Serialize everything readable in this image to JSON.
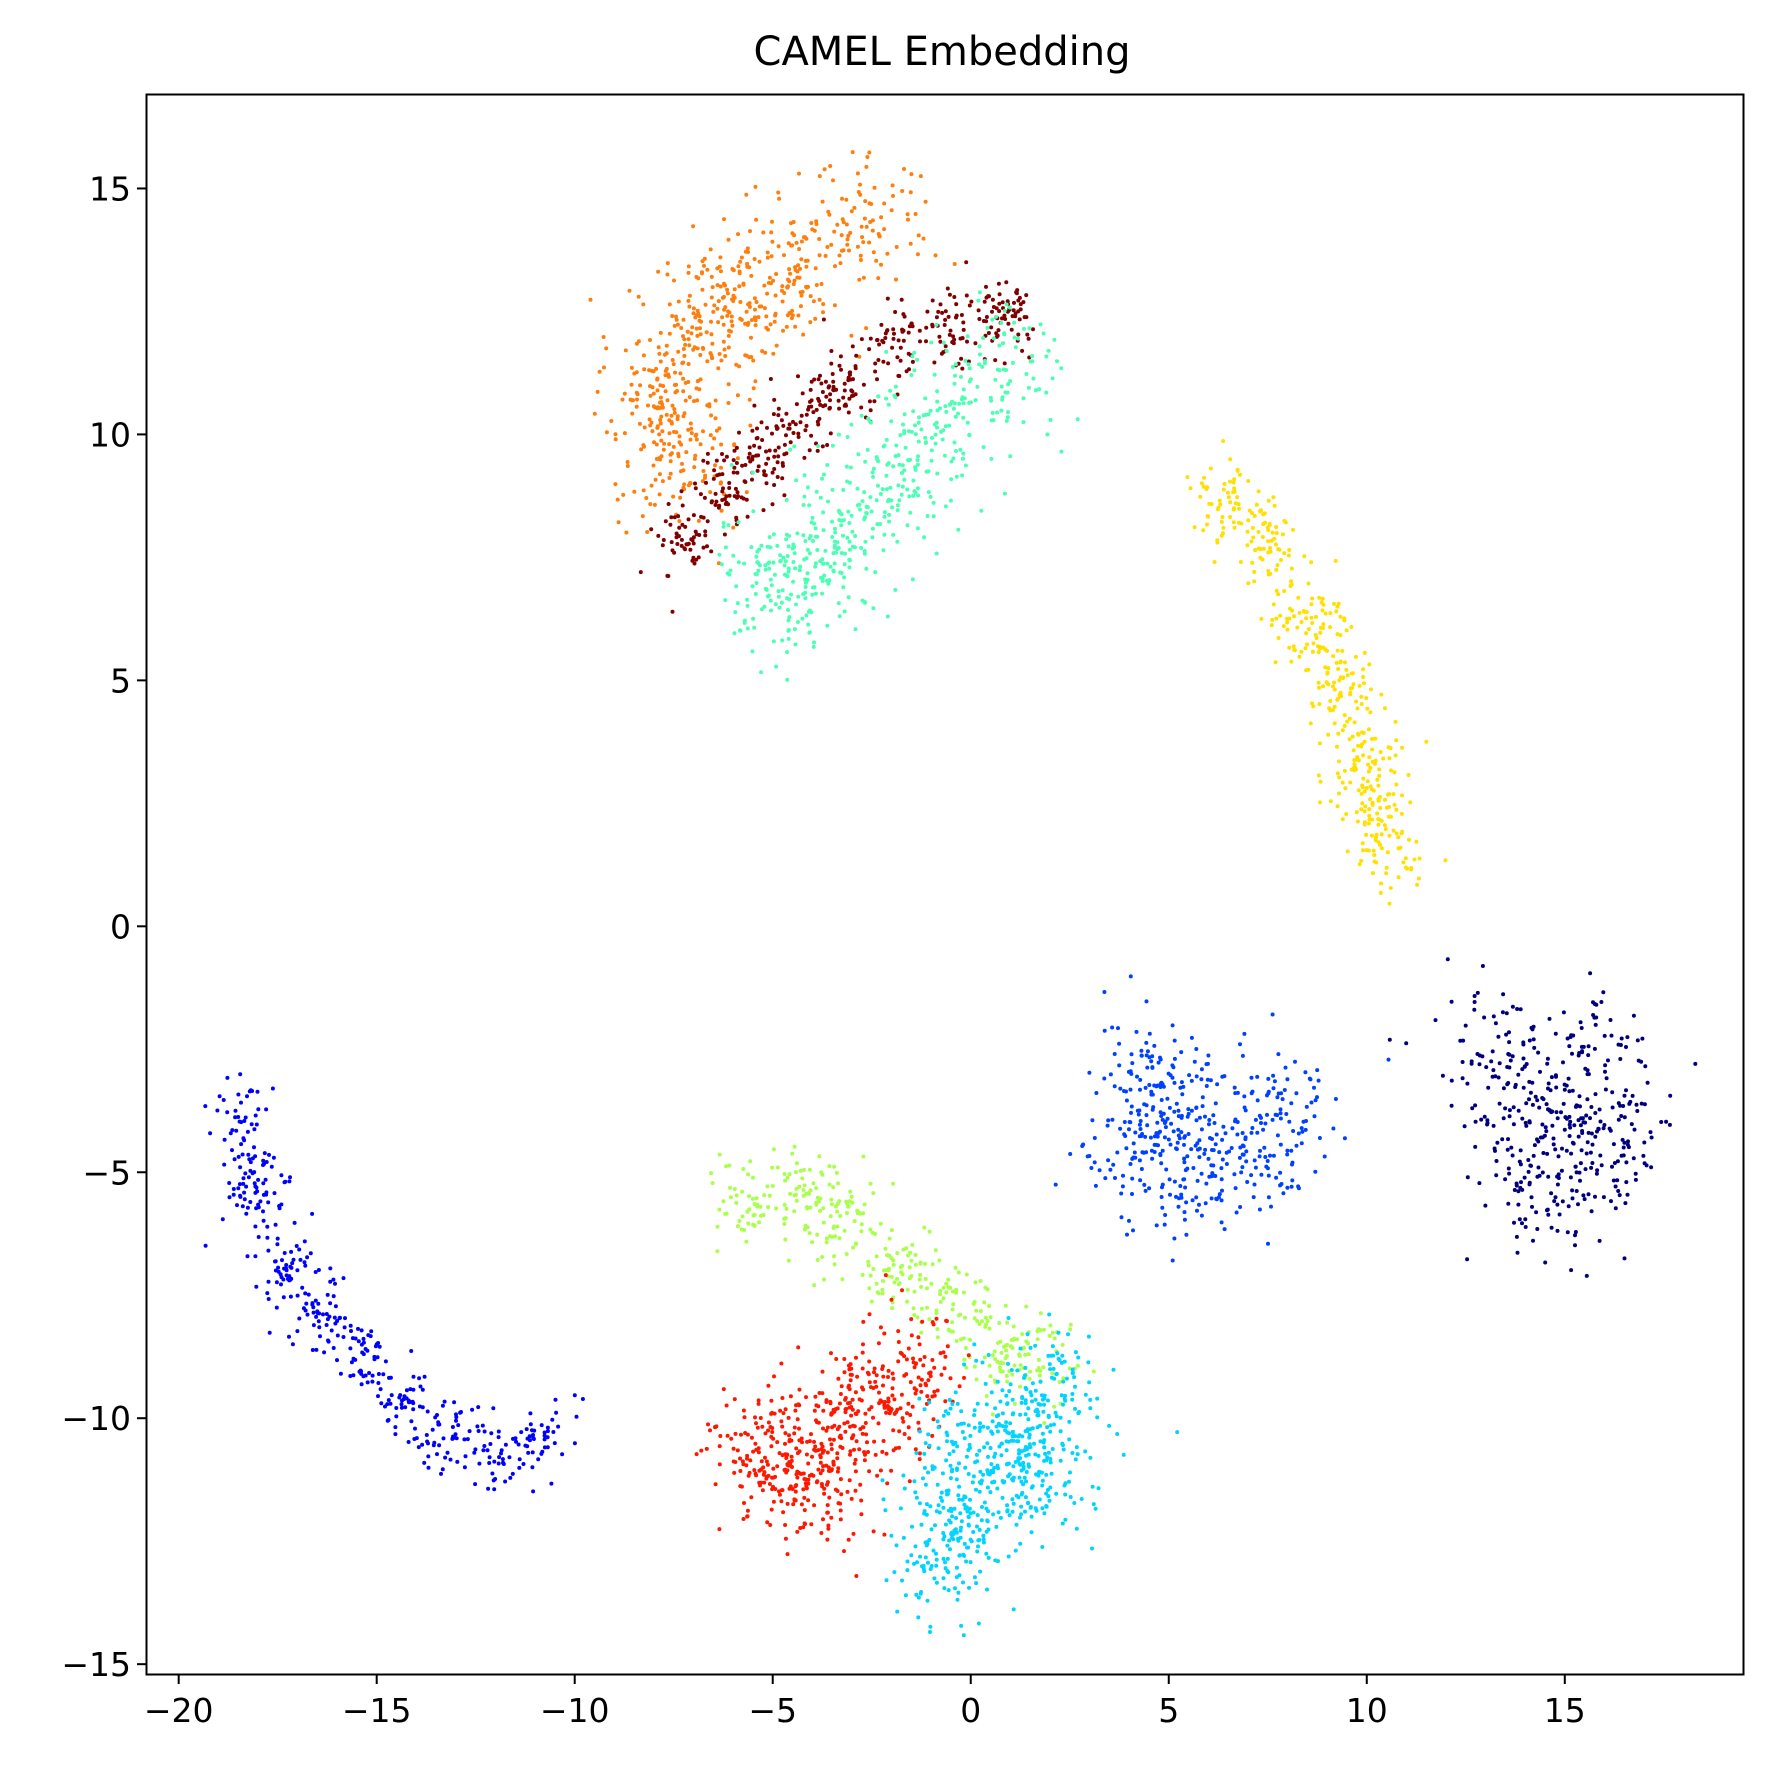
{
  "chart_data": {
    "type": "scatter",
    "title": "CAMEL Embedding",
    "xlabel": "",
    "ylabel": "",
    "xlim": [
      -20.8,
      19.5
    ],
    "ylim": [
      -15.2,
      16.9
    ],
    "xticks": [
      -20,
      -15,
      -10,
      -5,
      0,
      5,
      10,
      15
    ],
    "xtick_labels": [
      "−20",
      "−15",
      "−10",
      "−5",
      "0",
      "5",
      "10",
      "15"
    ],
    "yticks": [
      -15,
      -10,
      -5,
      0,
      5,
      10,
      15
    ],
    "ytick_labels": [
      "−15",
      "−10",
      "−5",
      "0",
      "5",
      "10",
      "15"
    ],
    "grid": false,
    "legend": "none",
    "colormap": "jet",
    "clusters": [
      {
        "color": "#ff7f0e",
        "n": 600,
        "points": [
          [
            -8.0,
            10.5
          ],
          [
            -6.3,
            12.6
          ],
          [
            -4.5,
            13.5
          ],
          [
            -2.5,
            14.3
          ],
          [
            -7.1,
            11.8
          ],
          [
            -5.2,
            13.0
          ],
          [
            -7.4,
            9.6
          ]
        ],
        "spread": 0.75
      },
      {
        "color": "#800000",
        "n": 450,
        "points": [
          [
            -7.2,
            7.9
          ],
          [
            -6.3,
            8.8
          ],
          [
            -5.3,
            9.5
          ],
          [
            -4.2,
            10.3
          ],
          [
            -3.2,
            11.0
          ],
          [
            -2.0,
            11.8
          ],
          [
            -0.6,
            12.2
          ],
          [
            0.8,
            12.4
          ]
        ],
        "spread": 0.4
      },
      {
        "color": "#4dffb4",
        "n": 550,
        "points": [
          [
            -4.3,
            7.0
          ],
          [
            -3.5,
            7.8
          ],
          [
            -2.2,
            8.8
          ],
          [
            -1.2,
            9.8
          ],
          [
            -0.3,
            10.6
          ],
          [
            0.9,
            11.3
          ],
          [
            -5.2,
            7.0
          ]
        ],
        "spread": 0.75
      },
      {
        "color": "#ffe000",
        "n": 450,
        "points": [
          [
            6.5,
            8.6
          ],
          [
            7.5,
            7.6
          ],
          [
            8.5,
            6.2
          ],
          [
            9.3,
            4.9
          ],
          [
            9.9,
            3.6
          ],
          [
            10.2,
            2.4
          ],
          [
            10.5,
            1.6
          ]
        ],
        "spread": 0.45
      },
      {
        "color": "#0040ff",
        "n": 450,
        "points": [
          [
            4.0,
            -4.6
          ],
          [
            5.0,
            -3.8
          ],
          [
            6.2,
            -4.1
          ],
          [
            7.2,
            -4.5
          ],
          [
            7.9,
            -3.6
          ],
          [
            4.4,
            -2.8
          ],
          [
            5.6,
            -5.0
          ]
        ],
        "spread": 0.7
      },
      {
        "color": "#00007f",
        "n": 420,
        "points": [
          [
            13.0,
            -2.6
          ],
          [
            14.0,
            -3.6
          ],
          [
            15.0,
            -4.4
          ],
          [
            16.3,
            -4.5
          ],
          [
            14.3,
            -5.3
          ],
          [
            15.5,
            -2.8
          ]
        ],
        "spread": 0.8
      },
      {
        "color": "#0000ff",
        "n": 450,
        "points": [
          [
            -18.4,
            -4.0
          ],
          [
            -18.0,
            -5.4
          ],
          [
            -17.4,
            -6.8
          ],
          [
            -16.5,
            -7.8
          ],
          [
            -15.4,
            -8.7
          ],
          [
            -14.3,
            -9.7
          ],
          [
            -13.2,
            -10.3
          ],
          [
            -12.0,
            -10.6
          ],
          [
            -10.8,
            -10.4
          ]
        ],
        "spread": 0.4
      },
      {
        "color": "#aaff4d",
        "n": 400,
        "points": [
          [
            -5.6,
            -5.6
          ],
          [
            -4.2,
            -5.4
          ],
          [
            -3.2,
            -6.1
          ],
          [
            -1.8,
            -6.9
          ],
          [
            -0.6,
            -7.8
          ],
          [
            0.6,
            -8.6
          ],
          [
            1.8,
            -8.7
          ]
        ],
        "spread": 0.5
      },
      {
        "color": "#ff1800",
        "n": 550,
        "points": [
          [
            -5.4,
            -10.6
          ],
          [
            -4.4,
            -10.8
          ],
          [
            -3.4,
            -10.2
          ],
          [
            -2.4,
            -9.6
          ],
          [
            -1.4,
            -9.2
          ],
          [
            -3.8,
            -11.4
          ]
        ],
        "spread": 0.7
      },
      {
        "color": "#00d4ff",
        "n": 600,
        "points": [
          [
            0.4,
            -10.8
          ],
          [
            1.2,
            -10.0
          ],
          [
            -0.4,
            -11.8
          ],
          [
            1.6,
            -11.3
          ],
          [
            -0.6,
            -12.6
          ],
          [
            2.0,
            -9.6
          ]
        ],
        "spread": 0.75
      }
    ]
  }
}
